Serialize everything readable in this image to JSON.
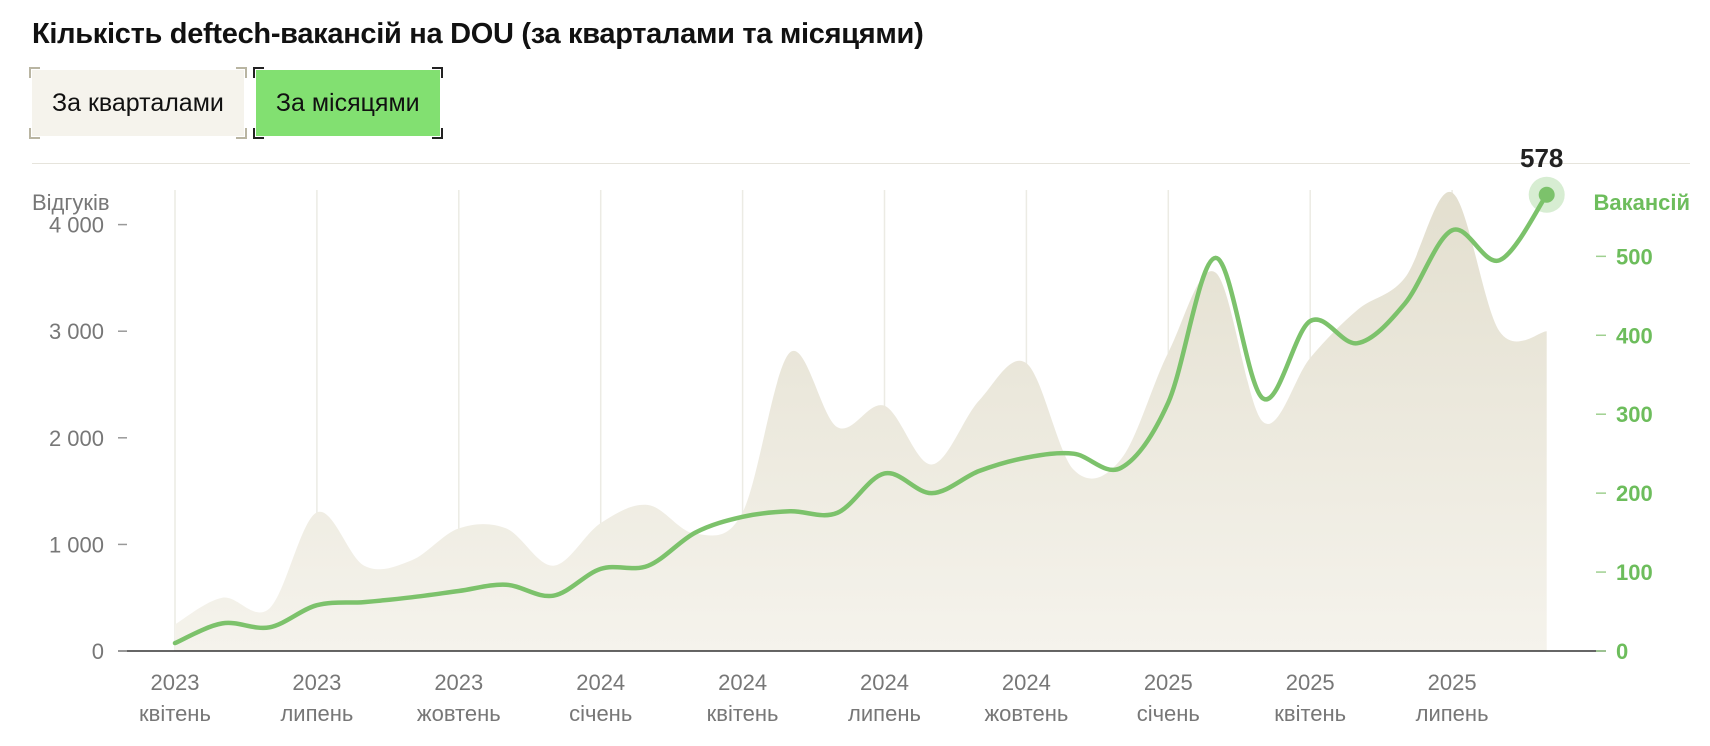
{
  "title": "Кількість deftech-вакансій на DOU (за кварталами та місяцями)",
  "tabs": [
    {
      "label": "За кварталами",
      "active": false
    },
    {
      "label": "За місяцями",
      "active": true
    }
  ],
  "colors": {
    "line": "#7cc26b",
    "area": "#e9e6d9",
    "accent_tab": "#82e071",
    "inactive_tab": "#f5f3ec",
    "right_axis": "#6dbd5c"
  },
  "chart_data": {
    "type": "line",
    "left_axis": {
      "title": "Відгуків",
      "ticks": [
        0,
        1000,
        2000,
        3000,
        4000
      ],
      "tick_labels": [
        "0",
        "1 000",
        "2 000",
        "3 000",
        "4 000"
      ],
      "range": [
        0,
        4850
      ]
    },
    "right_axis": {
      "title": "Вакансій",
      "ticks": [
        0,
        100,
        200,
        300,
        400,
        500
      ],
      "tick_labels": [
        "0",
        "100",
        "200",
        "300",
        "400",
        "500"
      ],
      "range": [
        0,
        655
      ]
    },
    "x_ticks": [
      {
        "year": "2023",
        "month": "квітень"
      },
      {
        "year": "2023",
        "month": "липень"
      },
      {
        "year": "2023",
        "month": "жовтень"
      },
      {
        "year": "2024",
        "month": "січень"
      },
      {
        "year": "2024",
        "month": "квітень"
      },
      {
        "year": "2024",
        "month": "липень"
      },
      {
        "year": "2024",
        "month": "жовтень"
      },
      {
        "year": "2025",
        "month": "січень"
      },
      {
        "year": "2025",
        "month": "квітень"
      },
      {
        "year": "2025",
        "month": "липень"
      }
    ],
    "series": [
      {
        "name": "Відгуків",
        "type": "area",
        "axis": "left",
        "values": [
          250,
          500,
          400,
          1300,
          800,
          850,
          1150,
          1150,
          800,
          1200,
          1370,
          1100,
          1300,
          2800,
          2100,
          2300,
          1750,
          2350,
          2700,
          1700,
          1800,
          2800,
          3550,
          2150,
          2750,
          3200,
          3500,
          4300,
          3000,
          3000
        ]
      },
      {
        "name": "Вакансій",
        "type": "line",
        "axis": "right",
        "values": [
          10,
          35,
          30,
          58,
          62,
          68,
          76,
          84,
          70,
          104,
          108,
          150,
          170,
          177,
          175,
          225,
          200,
          228,
          245,
          250,
          232,
          315,
          498,
          320,
          418,
          390,
          440,
          533,
          495,
          578
        ]
      }
    ],
    "last_value_label": "578",
    "grid": "vertical"
  }
}
